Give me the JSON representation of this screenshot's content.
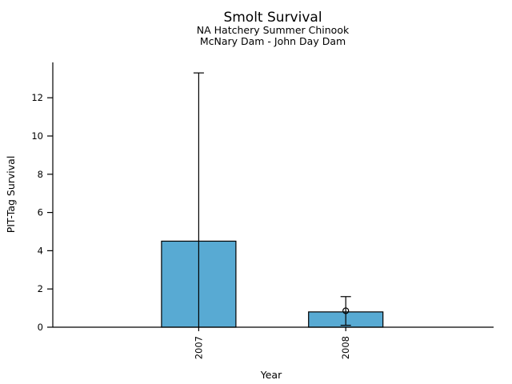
{
  "window": {
    "background_color": "#ffffff",
    "description": "plot-window"
  },
  "chart_data": {
    "type": "bar",
    "title": "Smolt Survival",
    "subtitle_line1": "NA Hatchery Summer Chinook",
    "subtitle_line2": "McNary Dam - John Day Dam",
    "xlabel": "Year",
    "ylabel": "PIT-Tag Survival",
    "categories": [
      "2007",
      "2008"
    ],
    "values": [
      4.5,
      0.8
    ],
    "error_upper": [
      13.3,
      1.6
    ],
    "error_lower": [
      0,
      0.1
    ],
    "point_markers": [
      null,
      0.86
    ],
    "yticks": [
      0,
      2,
      4,
      6,
      8,
      10,
      12
    ],
    "ylim": [
      0,
      13.9
    ],
    "grid": false,
    "legend_position": "none",
    "bar_color": "#58aad3",
    "bar_edge_color": "#000000",
    "axis_color": "#000000",
    "text_color": "#000000"
  }
}
